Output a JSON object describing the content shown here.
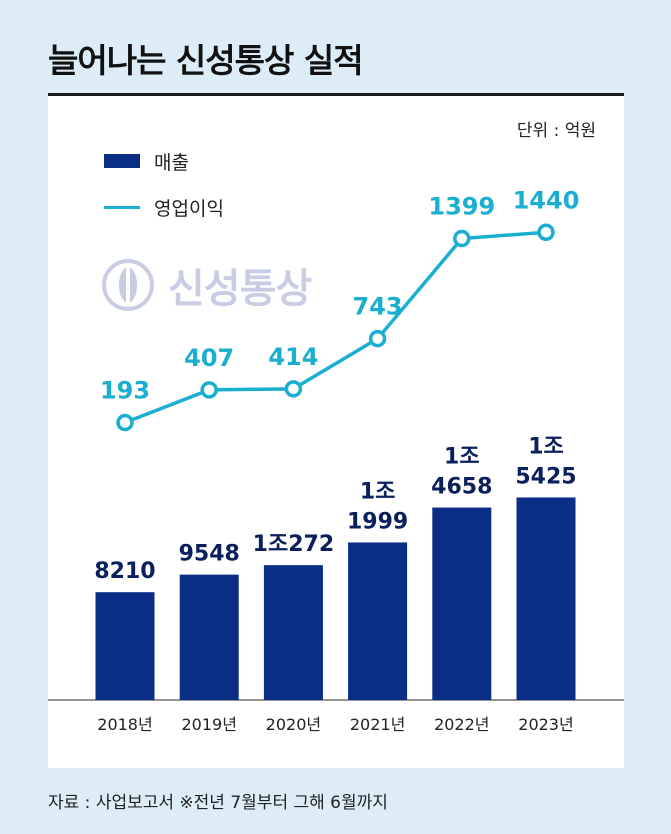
{
  "title": "늘어나는 신성통상 실적",
  "unit_label": "단위 : 억원",
  "watermark_text": "신성통상",
  "source": "자료 : 사업보고서  ※전년 7월부터 그해 6월까지",
  "colors": {
    "bar": "#0a2e86",
    "line": "#1aaed0",
    "background": "#dcedf7"
  },
  "chart_data": {
    "type": "bar",
    "categories": [
      "2018년",
      "2019년",
      "2020년",
      "2021년",
      "2022년",
      "2023년"
    ],
    "series": [
      {
        "name": "매출",
        "type": "bar",
        "values": [
          8210,
          9548,
          10272,
          11999,
          14658,
          15425
        ],
        "labels": [
          [
            "8210"
          ],
          [
            "9548"
          ],
          [
            "1조272"
          ],
          [
            "1조",
            "1999"
          ],
          [
            "1조",
            "4658"
          ],
          [
            "1조",
            "5425"
          ]
        ]
      },
      {
        "name": "영업이익",
        "type": "line",
        "values": [
          193,
          407,
          414,
          743,
          1399,
          1440
        ],
        "labels": [
          "193",
          "407",
          "414",
          "743",
          "1399",
          "1440"
        ]
      }
    ],
    "legend": "top-left",
    "unit": "억원"
  }
}
